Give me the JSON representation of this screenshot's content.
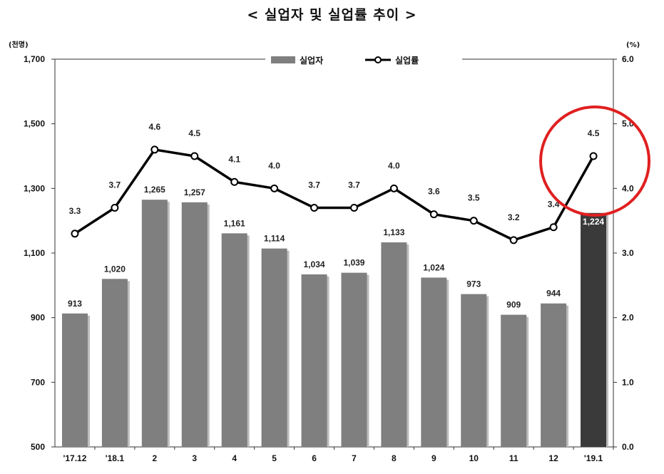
{
  "chart_data": {
    "type": "bar+line",
    "title": "< 실업자 및 실업률 추이 >",
    "left_unit": "(천명)",
    "right_unit": "(%)",
    "categories": [
      "'17.12",
      "'18.1",
      "2",
      "3",
      "4",
      "5",
      "6",
      "7",
      "8",
      "9",
      "10",
      "11",
      "12",
      "'19.1"
    ],
    "series": [
      {
        "name": "실업자",
        "type": "bar",
        "axis": "left",
        "values": [
          913,
          1020,
          1265,
          1257,
          1161,
          1114,
          1034,
          1039,
          1133,
          1024,
          973,
          909,
          944,
          1224
        ],
        "labels": [
          "913",
          "1,020",
          "1,265",
          "1,257",
          "1,161",
          "1,114",
          "1,034",
          "1,039",
          "1,133",
          "1,024",
          "973",
          "909",
          "944",
          "1,224"
        ],
        "color": "#7f7f7f",
        "highlight_color": "#3a3a3a"
      },
      {
        "name": "실업률",
        "type": "line",
        "axis": "right",
        "values": [
          3.3,
          3.7,
          4.6,
          4.5,
          4.1,
          4.0,
          3.7,
          3.7,
          4.0,
          3.6,
          3.5,
          3.2,
          3.4,
          4.5
        ],
        "labels": [
          "3.3",
          "3.7",
          "4.6",
          "4.5",
          "4.1",
          "4.0",
          "3.7",
          "3.7",
          "4.0",
          "3.6",
          "3.5",
          "3.2",
          "3.4",
          "4.5"
        ],
        "color": "#000000"
      }
    ],
    "y_left": {
      "min": 500,
      "max": 1700,
      "ticks": [
        "500",
        "700",
        "900",
        "1,100",
        "1,300",
        "1,500",
        "1,700"
      ],
      "tick_values": [
        500,
        700,
        900,
        1100,
        1300,
        1500,
        1700
      ]
    },
    "y_right": {
      "min": 0,
      "max": 6,
      "ticks": [
        "0.0",
        "1.0",
        "2.0",
        "3.0",
        "4.0",
        "5.0",
        "6.0"
      ],
      "tick_values": [
        0,
        1,
        2,
        3,
        4,
        5,
        6
      ]
    },
    "legend_position": "top-center",
    "grid": false,
    "annotation": {
      "type": "circle",
      "color": "#e02020",
      "target_category": "'19.1"
    }
  }
}
